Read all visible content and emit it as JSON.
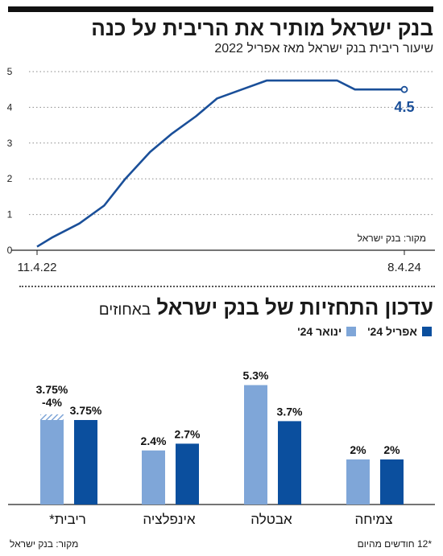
{
  "chart1": {
    "title": "בנק ישראל מותיר את הריבית על כנה",
    "subtitle": "שיעור ריבית בנק ישראל מאז אפריל 2022",
    "source": "מקור: בנק ישראל",
    "end_label": "4.5",
    "color": "#1a4f99"
  },
  "chart2": {
    "title": "עדכון התחזיות של בנק ישראל",
    "title_unit": "באחוזים",
    "legend_april": "אפריל 24'",
    "legend_january": "ינואר 24'",
    "footnote": "*12 חודשים מהיום",
    "source": "מקור: בנק ישראל",
    "color_april": "#0b4f9e",
    "color_january": "#7fa6d8"
  },
  "chart_data": [
    {
      "type": "line",
      "x": [
        "11.4.22",
        "10.5.22",
        "4.7.22",
        "22.8.22",
        "3.10.22",
        "21.11.22",
        "2.1.23",
        "20.2.23",
        "3.4.23",
        "22.5.23",
        "10.7.23",
        "27.11.23",
        "1.1.24",
        "8.4.24"
      ],
      "y": [
        0.1,
        0.35,
        0.75,
        1.25,
        2.0,
        2.75,
        3.25,
        3.75,
        4.25,
        4.5,
        4.75,
        4.75,
        4.5,
        4.5
      ],
      "xticks": [
        "11.4.22",
        "8.4.24"
      ],
      "yticks": [
        0,
        1,
        2,
        3,
        4,
        5
      ],
      "ylim": [
        0,
        5
      ],
      "grid": true,
      "title": "בנק ישראל מותיר את הריבית על כנה",
      "annotation": "4.5"
    },
    {
      "type": "bar",
      "categories": [
        "ריבית*",
        "אינפלציה",
        "אבטלה",
        "צמיחה"
      ],
      "series": [
        {
          "name": "ינואר 24'",
          "values": [
            3.875,
            2.4,
            5.3,
            2.0
          ],
          "labels": [
            "3.75%-4%",
            "2.4%",
            "5.3%",
            "2%"
          ]
        },
        {
          "name": "אפריל 24'",
          "values": [
            3.75,
            2.7,
            3.7,
            2.0
          ],
          "labels": [
            "3.75%",
            "2.7%",
            "3.7%",
            "2%"
          ]
        }
      ],
      "title": "עדכון התחזיות של בנק ישראל",
      "legend": "top-right"
    }
  ]
}
